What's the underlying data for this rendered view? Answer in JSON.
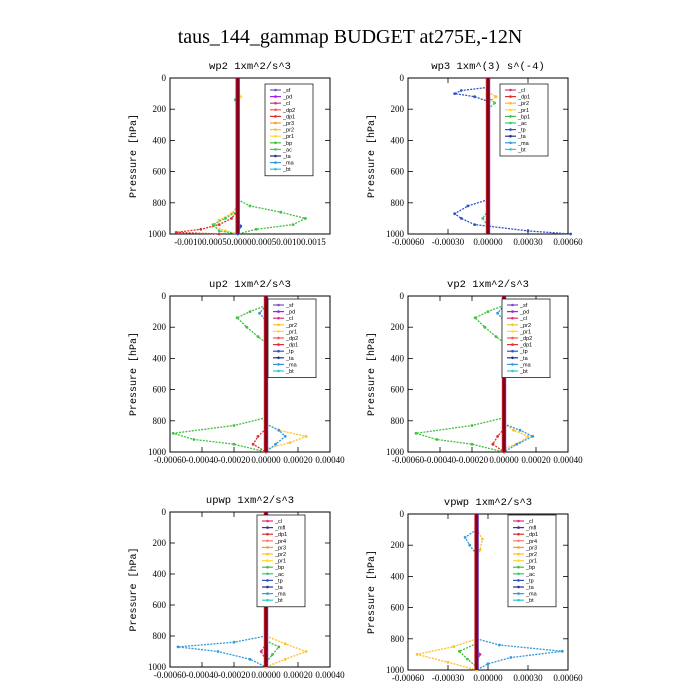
{
  "figure_title": "taus_144_gammap  BUDGET at275E,-12N",
  "colors": {
    "_sf": "#7a4fbf",
    "_pd": "#a020f0",
    "_cl": "#e0307a",
    "_dp2": "#ff5050",
    "_dp1": "#e0302d",
    "_pr3": "#ff9a33",
    "_pr2": "#ffc020",
    "_pr1": "#ffd83a",
    "_bp": "#40c040",
    "_ac": "#33cc66",
    "_tp": "#2f52c8",
    "_ta": "#223388",
    "_ma": "#3399dd",
    "_bt": "#30c8d8",
    "_mfl": "#4b2aa0",
    "_pr4": "#ff7a7a",
    "_bp1": "#40c040",
    "main": "#800020"
  },
  "chart_data": [
    {
      "type": "line",
      "panel": "wp2",
      "title": "wp2  1xm^2/s^3",
      "ylabel": "Pressure [hPa]",
      "ylim": [
        1000,
        0
      ],
      "yticks": [
        0,
        200,
        400,
        600,
        800,
        1000
      ],
      "xlim": [
        -0.0011,
        0.0015
      ],
      "xtick_labels": [
        "-0.00100.00050.00000.00050.00100.0015"
      ],
      "legend": [
        "_sf",
        "_pd",
        "_cl",
        "_dp2",
        "_dp1",
        "_pr3",
        "_pr2",
        "_pr1",
        "_bp",
        "_ac",
        "_ta",
        "_ma",
        "_bt"
      ],
      "series": [
        {
          "name": "_bp",
          "y": [
            780,
            820,
            860,
            900,
            940,
            970,
            1000
          ],
          "x": [
            0,
            0.0002,
            0.0007,
            0.0011,
            0.0009,
            0.0003,
            0
          ]
        },
        {
          "name": "_pr2",
          "y": [
            820,
            870,
            910,
            950,
            980,
            1000
          ],
          "x": [
            0,
            -0.0001,
            -0.0003,
            -0.0004,
            -0.0002,
            0
          ]
        },
        {
          "name": "_dp1",
          "y": [
            850,
            900,
            940,
            970,
            990,
            1000
          ],
          "x": [
            0,
            -0.0001,
            -0.0003,
            -0.0006,
            -0.001,
            -0.0003
          ]
        },
        {
          "name": "_ac",
          "y": [
            850,
            900,
            940,
            980,
            1000
          ],
          "x": [
            0,
            -0.0002,
            -0.0004,
            -0.0003,
            0
          ]
        },
        {
          "name": "_tp",
          "y": [
            900,
            950,
            1000
          ],
          "x": [
            0,
            5e-05,
            0
          ]
        },
        {
          "name": "_pr1",
          "y": [
            80,
            120,
            170
          ],
          "x": [
            0,
            5e-05,
            0
          ]
        },
        {
          "name": "_ac",
          "y": [
            100,
            140,
            180
          ],
          "x": [
            0,
            -4e-05,
            0
          ]
        }
      ]
    },
    {
      "type": "line",
      "panel": "wp3",
      "title": "wp3  1xm^(3) s^(-4)",
      "ylabel": "Pressure [hPa]",
      "ylim": [
        1000,
        0
      ],
      "yticks": [
        0,
        200,
        400,
        600,
        800,
        1000
      ],
      "xlim": [
        -0.0006,
        0.0006
      ],
      "xtick_labels": [
        "-0.00060",
        "-0.00030",
        "0.00000",
        "0.00030",
        "0.00060"
      ],
      "legend": [
        "_cl",
        "_dp1",
        "_pr2",
        "_pr1",
        "_bp1",
        "_ac",
        "_tp",
        "_ta",
        "_ma",
        "_bt"
      ],
      "series": [
        {
          "name": "_tp",
          "y": [
            60,
            80,
            100,
            120,
            150
          ],
          "x": [
            0,
            -0.0002,
            -0.00025,
            -0.0001,
            0
          ]
        },
        {
          "name": "_tp",
          "y": [
            780,
            820,
            870,
            900,
            940,
            980,
            1000
          ],
          "x": [
            0,
            -0.00015,
            -0.00025,
            -0.0002,
            -0.0001,
            0.0003,
            0.00062
          ]
        },
        {
          "name": "_pr2",
          "y": [
            90,
            120,
            160
          ],
          "x": [
            0,
            6e-05,
            0
          ]
        },
        {
          "name": "_ac",
          "y": [
            120,
            160,
            200
          ],
          "x": [
            0,
            5e-05,
            0
          ]
        },
        {
          "name": "_ac",
          "y": [
            850,
            900,
            950
          ],
          "x": [
            0,
            -4e-05,
            0
          ]
        }
      ]
    },
    {
      "type": "line",
      "panel": "up2",
      "title": "up2  1xm^2/s^3",
      "ylabel": "Pressure [hPa]",
      "ylim": [
        1000,
        0
      ],
      "yticks": [
        0,
        200,
        400,
        600,
        800,
        1000
      ],
      "xlim": [
        -0.0006,
        0.0004
      ],
      "xtick_labels": [
        "-0.00060",
        "-0.00040",
        "-0.00020",
        "0.00000",
        "0.00020",
        "0.00040"
      ],
      "legend": [
        "_sf",
        "_pd",
        "_cl",
        "_pr2",
        "_pr1",
        "_dp2",
        "_dp1",
        "_tp",
        "_ta",
        "_ma",
        "_bt"
      ],
      "series": [
        {
          "name": "_bp",
          "y": [
            60,
            100,
            140,
            200,
            260,
            300
          ],
          "x": [
            0,
            -0.0001,
            -0.00018,
            -0.00012,
            -5e-05,
            0
          ]
        },
        {
          "name": "_pr2",
          "y": [
            60,
            100,
            150,
            220,
            280
          ],
          "x": [
            0,
            5e-05,
            8e-05,
            4e-05,
            0
          ]
        },
        {
          "name": "_ma",
          "y": [
            60,
            110,
            160
          ],
          "x": [
            0,
            -4e-05,
            0
          ]
        },
        {
          "name": "_bp",
          "y": [
            780,
            830,
            880,
            920,
            950,
            1000
          ],
          "x": [
            0,
            -0.0002,
            -0.00058,
            -0.00045,
            -0.0002,
            0
          ]
        },
        {
          "name": "_pr2",
          "y": [
            820,
            860,
            900,
            940,
            980
          ],
          "x": [
            0,
            8e-05,
            0.00025,
            0.00015,
            0
          ]
        },
        {
          "name": "_ma",
          "y": [
            820,
            860,
            900,
            950,
            1000
          ],
          "x": [
            0,
            8e-05,
            0.00012,
            6e-05,
            0
          ]
        },
        {
          "name": "_dp1",
          "y": [
            850,
            900,
            950,
            1000
          ],
          "x": [
            0,
            -5e-05,
            -8e-05,
            0
          ]
        }
      ]
    },
    {
      "type": "line",
      "panel": "vp2",
      "title": "vp2  1xm^2/s^3",
      "ylabel": "Pressure [hPa]",
      "ylim": [
        1000,
        0
      ],
      "yticks": [
        0,
        200,
        400,
        600,
        800,
        1000
      ],
      "xlim": [
        -0.0006,
        0.0004
      ],
      "xtick_labels": [
        "-0.00060",
        "-0.00040",
        "-0.00020",
        "0.00000",
        "0.00020",
        "0.00040"
      ],
      "legend": [
        "_sf",
        "_pd",
        "_cl",
        "_pr2",
        "_pr1",
        "_dp2",
        "_dp1",
        "_tp",
        "_ta",
        "_ma",
        "_bt"
      ],
      "series": [
        {
          "name": "_bp",
          "y": [
            60,
            100,
            140,
            200,
            260,
            300
          ],
          "x": [
            0,
            -0.0001,
            -0.00018,
            -0.00012,
            -5e-05,
            0
          ]
        },
        {
          "name": "_pr2",
          "y": [
            60,
            100,
            150,
            220,
            280
          ],
          "x": [
            0,
            5e-05,
            7e-05,
            4e-05,
            0
          ]
        },
        {
          "name": "_ma",
          "y": [
            60,
            110,
            160
          ],
          "x": [
            0,
            -4e-05,
            0
          ]
        },
        {
          "name": "_bp",
          "y": [
            780,
            830,
            880,
            920,
            950,
            1000
          ],
          "x": [
            0,
            -0.0002,
            -0.00055,
            -0.00042,
            -0.0002,
            0
          ]
        },
        {
          "name": "_pr2",
          "y": [
            820,
            860,
            900,
            940,
            980
          ],
          "x": [
            0,
            6e-05,
            0.00015,
            0.0001,
            0
          ]
        },
        {
          "name": "_ma",
          "y": [
            820,
            860,
            900,
            950,
            1000
          ],
          "x": [
            0,
            0.0001,
            0.00018,
            8e-05,
            0
          ]
        },
        {
          "name": "_dp1",
          "y": [
            850,
            900,
            950,
            1000
          ],
          "x": [
            0,
            -4e-05,
            -7e-05,
            0
          ]
        }
      ]
    },
    {
      "type": "line",
      "panel": "upwp",
      "title": "upwp  1xm^2/s^3",
      "ylabel": "Pressure [hPa]",
      "ylim": [
        1000,
        0
      ],
      "yticks": [
        0,
        200,
        400,
        600,
        800,
        1000
      ],
      "xlim": [
        -0.0006,
        0.0004
      ],
      "xtick_labels": [
        "-0.00060",
        "-0.00040",
        "-0.00020",
        "0.00000",
        "0.00020",
        "0.00040"
      ],
      "legend": [
        "_cl",
        "_mfl",
        "_dp1",
        "_pr4",
        "_pr3",
        "_pr2",
        "_pr1",
        "_bp",
        "_ac",
        "_tp",
        "_ta",
        "_ma",
        "_bt"
      ],
      "series": [
        {
          "name": "_ma",
          "y": [
            150,
            190,
            230
          ],
          "x": [
            0,
            -4e-05,
            0
          ]
        },
        {
          "name": "_ma",
          "y": [
            800,
            840,
            870,
            900,
            950,
            1000
          ],
          "x": [
            0,
            -0.0002,
            -0.00055,
            -0.0003,
            -0.0001,
            0
          ]
        },
        {
          "name": "_pr2",
          "y": [
            800,
            850,
            900,
            950,
            1000
          ],
          "x": [
            0,
            0.00012,
            0.00025,
            0.00012,
            0
          ]
        },
        {
          "name": "_bp",
          "y": [
            830,
            870,
            920,
            970
          ],
          "x": [
            0,
            8e-05,
            4e-05,
            0
          ]
        },
        {
          "name": "_cl",
          "y": [
            850,
            900,
            960
          ],
          "x": [
            0,
            -3e-05,
            0
          ]
        }
      ]
    },
    {
      "type": "line",
      "panel": "vpwp",
      "title": "vpwp  1xm^2/s^3",
      "ylabel": "Pressure [hPa]",
      "ylim": [
        1000,
        0
      ],
      "yticks": [
        0,
        200,
        400,
        600,
        800,
        1000
      ],
      "xlim": [
        -0.0006,
        0.0008
      ],
      "xtick_labels": [
        "-0.00060",
        "-0.00030",
        "0.00000",
        "0.00030",
        "0.00060"
      ],
      "legend": [
        "_cl",
        "_mfl",
        "_dp1",
        "_pr4",
        "_pr3",
        "_pr2",
        "_pr1",
        "_bp",
        "_ac",
        "_tp",
        "_ta",
        "_ma",
        "_bt"
      ],
      "series": [
        {
          "name": "_ma",
          "y": [
            100,
            150,
            200,
            260
          ],
          "x": [
            0,
            -0.0001,
            -6e-05,
            0
          ]
        },
        {
          "name": "_pr2",
          "y": [
            100,
            160,
            230,
            290
          ],
          "x": [
            0,
            5e-05,
            3e-05,
            0
          ]
        },
        {
          "name": "_ma",
          "y": [
            800,
            840,
            880,
            920,
            960,
            1000
          ],
          "x": [
            0,
            0.0002,
            0.00075,
            0.0003,
            0.0001,
            0
          ]
        },
        {
          "name": "_pr2",
          "y": [
            800,
            850,
            900,
            950,
            1000
          ],
          "x": [
            0,
            -0.0002,
            -0.00052,
            -0.00025,
            0
          ]
        },
        {
          "name": "_bp",
          "y": [
            830,
            880,
            930,
            980
          ],
          "x": [
            0,
            -0.00015,
            -8e-05,
            0
          ]
        },
        {
          "name": "_cl",
          "y": [
            850,
            900,
            950
          ],
          "x": [
            0,
            3e-05,
            0
          ]
        }
      ]
    }
  ]
}
